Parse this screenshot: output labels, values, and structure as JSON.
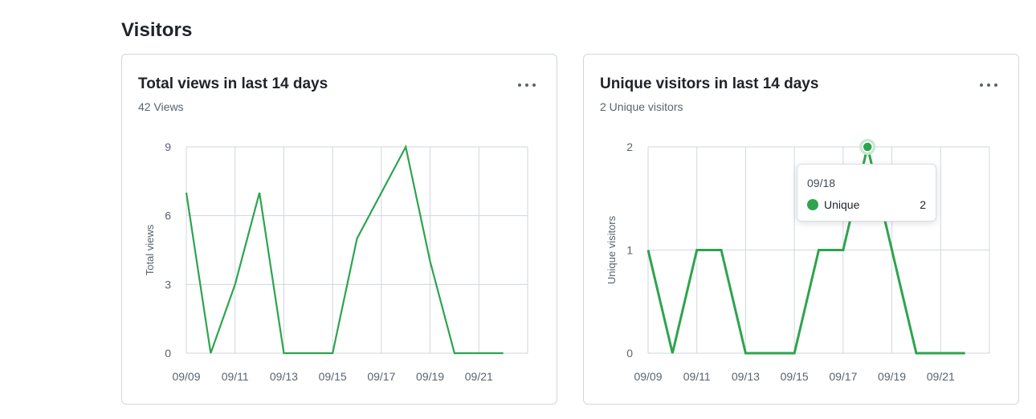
{
  "section": {
    "title": "Visitors"
  },
  "colors": {
    "series": "#2da44e",
    "grid": "#d0d7de",
    "marker_halo": "#c6e9cf"
  },
  "cards": [
    {
      "title": "Total views in last 14 days",
      "subtitle": "42 Views",
      "more_icon": "kebab-horizontal-icon",
      "chart_data": {
        "type": "line",
        "title": "Total views in last 14 days",
        "xlabel": "",
        "ylabel": "Total views",
        "x": [
          "09/09",
          "09/10",
          "09/11",
          "09/12",
          "09/13",
          "09/14",
          "09/15",
          "09/16",
          "09/17",
          "09/18",
          "09/19",
          "09/20",
          "09/21",
          "09/22"
        ],
        "x_tick_labels": [
          "09/09",
          "09/11",
          "09/13",
          "09/15",
          "09/17",
          "09/19",
          "09/21"
        ],
        "y_ticks": [
          0,
          3,
          6,
          9
        ],
        "ylim": [
          0,
          9
        ],
        "grid": true,
        "series": [
          {
            "values": [
              7,
              0,
              3,
              7,
              0,
              0,
              0,
              5,
              7,
              9,
              4,
              0,
              0,
              0
            ]
          }
        ]
      }
    },
    {
      "title": "Unique visitors in last 14 days",
      "subtitle": "2 Unique visitors",
      "more_icon": "kebab-horizontal-icon",
      "tooltip": {
        "date": "09/18",
        "series": "Unique",
        "value": "2"
      },
      "chart_data": {
        "type": "line",
        "title": "Unique visitors in last 14 days",
        "xlabel": "",
        "ylabel": "Unique visitors",
        "x": [
          "09/09",
          "09/10",
          "09/11",
          "09/12",
          "09/13",
          "09/14",
          "09/15",
          "09/16",
          "09/17",
          "09/18",
          "09/19",
          "09/20",
          "09/21",
          "09/22"
        ],
        "x_tick_labels": [
          "09/09",
          "09/11",
          "09/13",
          "09/15",
          "09/17",
          "09/19",
          "09/21"
        ],
        "y_ticks": [
          0,
          1,
          2
        ],
        "ylim": [
          0,
          2
        ],
        "grid": true,
        "highlighted_x": "09/18",
        "series": [
          {
            "name": "Unique",
            "values": [
              1,
              0,
              1,
              1,
              0,
              0,
              0,
              1,
              1,
              2,
              1,
              0,
              0,
              0
            ]
          }
        ]
      }
    }
  ]
}
